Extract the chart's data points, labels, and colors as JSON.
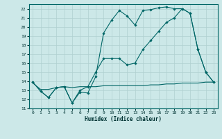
{
  "xlabel": "Humidex (Indice chaleur)",
  "xlim": [
    -0.5,
    23.5
  ],
  "ylim": [
    11,
    22.5
  ],
  "yticks": [
    11,
    12,
    13,
    14,
    15,
    16,
    17,
    18,
    19,
    20,
    21,
    22
  ],
  "xticks": [
    0,
    1,
    2,
    3,
    4,
    5,
    6,
    7,
    8,
    9,
    10,
    11,
    12,
    13,
    14,
    15,
    16,
    17,
    18,
    19,
    20,
    21,
    22,
    23
  ],
  "bg_color": "#cce8e8",
  "grid_color": "#b0d0d0",
  "line_color": "#006666",
  "line1_x": [
    0,
    1,
    2,
    3,
    4,
    5,
    6,
    7,
    8,
    9,
    10,
    11,
    12,
    13,
    14,
    15,
    16,
    17,
    18,
    19,
    20,
    21,
    22,
    23
  ],
  "line1_y": [
    13.9,
    12.9,
    12.2,
    13.3,
    13.4,
    11.6,
    12.8,
    12.7,
    14.5,
    19.3,
    20.7,
    21.8,
    21.2,
    20.2,
    21.8,
    21.9,
    22.1,
    22.2,
    22.0,
    22.0,
    21.5,
    17.5,
    15.0,
    13.9
  ],
  "line2_x": [
    0,
    1,
    2,
    3,
    4,
    5,
    6,
    7,
    8,
    9,
    10,
    11,
    12,
    13,
    14,
    15,
    16,
    17,
    18,
    19,
    20,
    21,
    22,
    23
  ],
  "line2_y": [
    13.8,
    13.1,
    13.1,
    13.3,
    13.4,
    13.3,
    13.4,
    13.4,
    13.4,
    13.5,
    13.5,
    13.5,
    13.5,
    13.5,
    13.5,
    13.6,
    13.6,
    13.7,
    13.7,
    13.8,
    13.8,
    13.8,
    13.9,
    13.9
  ],
  "line3_x": [
    0,
    1,
    2,
    3,
    4,
    5,
    6,
    7,
    8,
    9,
    10,
    11,
    12,
    13,
    14,
    15,
    16,
    17,
    18,
    19,
    20,
    21,
    22,
    23
  ],
  "line3_y": [
    13.9,
    12.9,
    12.2,
    13.3,
    13.4,
    11.6,
    13.0,
    13.4,
    15.0,
    16.5,
    16.5,
    16.5,
    15.8,
    16.0,
    17.5,
    18.5,
    19.5,
    20.5,
    21.0,
    22.0,
    21.5,
    17.5,
    15.0,
    13.9
  ]
}
